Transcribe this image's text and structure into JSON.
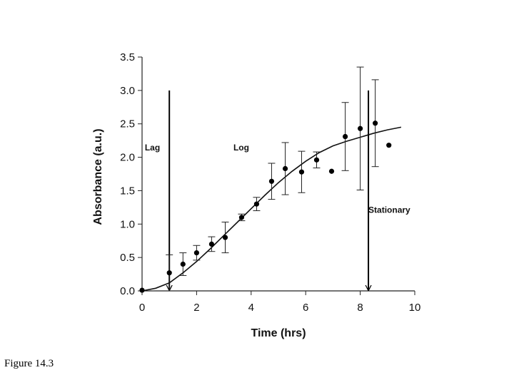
{
  "caption": "Figure 14.3",
  "chart_data": {
    "type": "scatter",
    "title": "",
    "xlabel": "Time (hrs)",
    "ylabel": "Absorbance (a.u.)",
    "xlim": [
      0,
      10
    ],
    "ylim": [
      0,
      3.5
    ],
    "x_ticks": [
      "0",
      "2",
      "4",
      "6",
      "8",
      "10"
    ],
    "y_ticks": [
      "0.0",
      "0.5",
      "1.0",
      "1.5",
      "2.0",
      "2.5",
      "3.0",
      "3.5"
    ],
    "grid": false,
    "legend": "none",
    "points": [
      {
        "x": 0.0,
        "y": 0.01,
        "err": null
      },
      {
        "x": 1.0,
        "y": 0.27,
        "err": 0.27
      },
      {
        "x": 1.5,
        "y": 0.4,
        "err": 0.17
      },
      {
        "x": 2.0,
        "y": 0.57,
        "err": 0.11
      },
      {
        "x": 2.55,
        "y": 0.7,
        "err": 0.11
      },
      {
        "x": 3.05,
        "y": 0.8,
        "err": 0.23
      },
      {
        "x": 3.65,
        "y": 1.1,
        "err": 0.05
      },
      {
        "x": 4.2,
        "y": 1.3,
        "err": 0.1
      },
      {
        "x": 4.75,
        "y": 1.64,
        "err": 0.27
      },
      {
        "x": 5.25,
        "y": 1.83,
        "err": 0.39
      },
      {
        "x": 5.85,
        "y": 1.78,
        "err": 0.31
      },
      {
        "x": 6.4,
        "y": 1.96,
        "err": 0.12
      },
      {
        "x": 6.95,
        "y": 1.79,
        "err": null
      },
      {
        "x": 7.45,
        "y": 2.31,
        "err": 0.51
      },
      {
        "x": 8.0,
        "y": 2.43,
        "err": 0.92
      },
      {
        "x": 8.55,
        "y": 2.51,
        "err": 0.65
      },
      {
        "x": 9.05,
        "y": 2.18,
        "err": null
      }
    ],
    "fit_curve": [
      [
        0.0,
        0.0
      ],
      [
        0.5,
        0.04
      ],
      [
        1.0,
        0.12
      ],
      [
        1.5,
        0.27
      ],
      [
        2.0,
        0.44
      ],
      [
        2.5,
        0.63
      ],
      [
        3.0,
        0.83
      ],
      [
        3.5,
        1.03
      ],
      [
        4.0,
        1.23
      ],
      [
        4.5,
        1.43
      ],
      [
        5.0,
        1.62
      ],
      [
        5.5,
        1.79
      ],
      [
        6.0,
        1.94
      ],
      [
        6.5,
        2.07
      ],
      [
        7.0,
        2.17
      ],
      [
        7.5,
        2.24
      ],
      [
        8.0,
        2.3
      ],
      [
        8.5,
        2.36
      ],
      [
        9.0,
        2.41
      ],
      [
        9.5,
        2.45
      ]
    ],
    "phase_markers": [
      {
        "x": 1.0,
        "y_top": 3.0,
        "y_bottom": 0.0
      },
      {
        "x": 8.3,
        "y_top": 3.0,
        "y_bottom": 0.0
      }
    ],
    "annotations": [
      {
        "text": "Lag",
        "x": 0.1,
        "y": 2.1
      },
      {
        "text": "Log",
        "x": 3.35,
        "y": 2.1
      },
      {
        "text": "Stationary",
        "x": 8.3,
        "y": 1.17
      }
    ]
  }
}
